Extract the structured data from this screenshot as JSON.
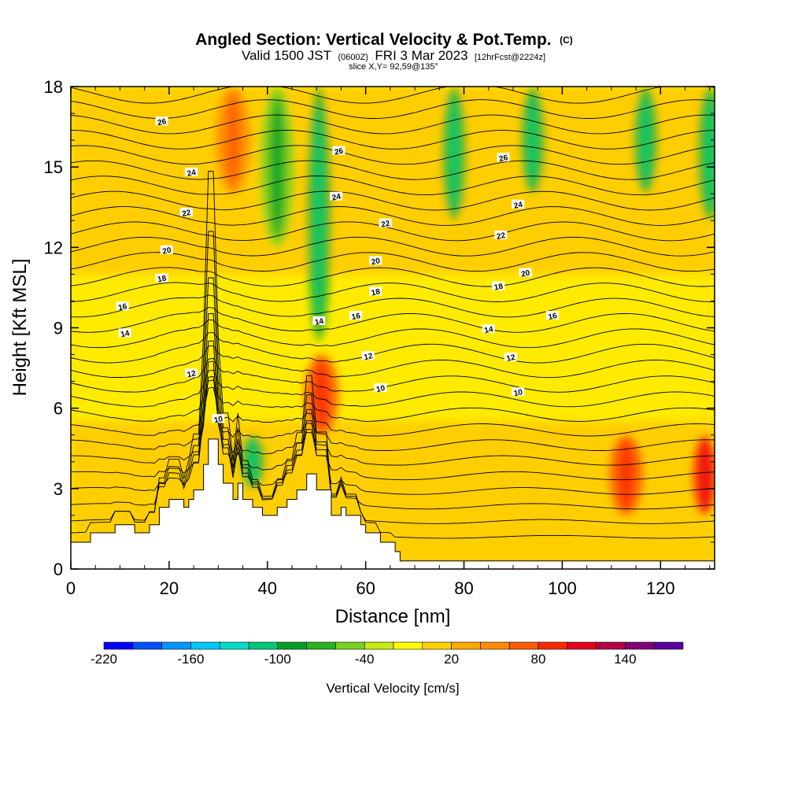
{
  "header": {
    "title_main": "Angled Section: Vertical Velocity & Pot.Temp.",
    "title_c": "(C)",
    "valid_prefix": "Valid 1500 JST",
    "valid_z": "(0600Z)",
    "valid_date": "FRI 3 Mar 2023",
    "valid_fcst": "[12hrFcst@2224z]",
    "slice": "slice X,Y= 92,59@135°"
  },
  "chart_data": {
    "type": "heatmap",
    "title": "Angled Section: Vertical Velocity & Pot.Temp.",
    "xlabel": "Distance [nm]",
    "ylabel": "Height [Kft MSL]",
    "xlim": [
      0,
      131
    ],
    "ylim": [
      0,
      18
    ],
    "x_ticks": [
      0,
      20,
      40,
      60,
      80,
      100,
      120
    ],
    "y_ticks": [
      0,
      3,
      6,
      9,
      12,
      15,
      18
    ],
    "grid": false,
    "colorbar": {
      "title": "Vertical Velocity [cm/s]",
      "min": -220,
      "max": 170,
      "step": 20,
      "tick_labels": [
        -220,
        -160,
        -100,
        -40,
        20,
        80,
        140
      ],
      "colors": [
        "#0000ff",
        "#0050ff",
        "#0096ff",
        "#00c8ff",
        "#00dcc8",
        "#00c878",
        "#00a028",
        "#28b41e",
        "#78d21e",
        "#c8eb14",
        "#ffff00",
        "#ffd200",
        "#ffaa00",
        "#ff8c00",
        "#ff5a00",
        "#ff2800",
        "#e6001e",
        "#b40046",
        "#820078",
        "#5a00a0"
      ]
    },
    "terrain_profile": {
      "x": [
        0,
        4,
        4,
        9,
        9,
        13,
        13,
        16,
        16,
        18,
        18,
        20,
        20,
        23,
        23,
        24,
        24,
        25,
        25,
        27,
        27,
        28,
        28,
        30,
        30,
        31,
        31,
        33,
        33,
        34,
        34,
        35,
        35,
        37,
        37,
        39,
        39,
        42,
        42,
        44,
        44,
        46,
        46,
        48,
        48,
        50,
        50,
        53,
        53,
        55,
        55,
        56,
        56,
        59,
        59,
        60,
        60,
        63,
        63,
        66,
        66,
        67,
        67,
        71,
        71,
        131
      ],
      "height_kft": [
        1.0,
        1.0,
        1.35,
        1.35,
        1.65,
        1.65,
        1.35,
        1.35,
        1.65,
        1.65,
        2.3,
        2.3,
        2.6,
        2.6,
        2.3,
        2.3,
        2.6,
        2.6,
        2.95,
        2.95,
        3.9,
        3.9,
        4.85,
        4.85,
        3.9,
        3.9,
        3.2,
        3.2,
        2.6,
        2.6,
        3.2,
        3.2,
        2.6,
        2.6,
        2.3,
        2.3,
        2.0,
        2.0,
        2.3,
        2.3,
        2.6,
        2.6,
        2.95,
        2.95,
        3.55,
        3.55,
        2.95,
        2.95,
        2.0,
        2.0,
        2.3,
        2.3,
        2.0,
        2.0,
        1.65,
        1.65,
        1.35,
        1.35,
        1.0,
        1.0,
        0.65,
        0.65,
        0.3,
        0.3,
        0.3,
        0.3
      ]
    },
    "vertical_velocity_features": [
      {
        "x": 50.5,
        "y_from": 8.5,
        "y_to": 18,
        "value": -80
      },
      {
        "x": 42,
        "y_from": 12,
        "y_to": 18,
        "value": -60
      },
      {
        "x": 78,
        "y_from": 13,
        "y_to": 18,
        "value": -80
      },
      {
        "x": 94,
        "y_from": 14,
        "y_to": 18,
        "value": -80
      },
      {
        "x": 117,
        "y_from": 14,
        "y_to": 18,
        "value": -80
      },
      {
        "x": 130,
        "y_from": 13,
        "y_to": 18,
        "value": -80
      },
      {
        "x": 37,
        "y_from": 3,
        "y_to": 5,
        "value": -80
      },
      {
        "x": 33,
        "y_from": 14,
        "y_to": 18,
        "value": 40
      },
      {
        "x": 51,
        "y_from": 5,
        "y_to": 8,
        "value": 60
      },
      {
        "x": 113,
        "y_from": 2,
        "y_to": 5,
        "value": 60
      },
      {
        "x": 129,
        "y_from": 2,
        "y_to": 5,
        "value": 80
      }
    ],
    "pot_temp_contour_labels": [
      {
        "x": 18.5,
        "y": 16.7,
        "text": "26"
      },
      {
        "x": 24.5,
        "y": 14.8,
        "text": "24"
      },
      {
        "x": 23.5,
        "y": 13.3,
        "text": "22"
      },
      {
        "x": 19.5,
        "y": 11.9,
        "text": "20"
      },
      {
        "x": 18.5,
        "y": 10.85,
        "text": "18"
      },
      {
        "x": 10.5,
        "y": 9.8,
        "text": "16"
      },
      {
        "x": 11,
        "y": 8.8,
        "text": "14"
      },
      {
        "x": 24.5,
        "y": 7.3,
        "text": "12"
      },
      {
        "x": 30,
        "y": 5.6,
        "text": "10"
      },
      {
        "x": 54.5,
        "y": 15.6,
        "text": "26"
      },
      {
        "x": 54,
        "y": 13.9,
        "text": "24"
      },
      {
        "x": 64,
        "y": 12.9,
        "text": "22"
      },
      {
        "x": 62,
        "y": 11.5,
        "text": "20"
      },
      {
        "x": 62,
        "y": 10.35,
        "text": "18"
      },
      {
        "x": 58,
        "y": 9.45,
        "text": "16"
      },
      {
        "x": 50.5,
        "y": 9.25,
        "text": "14"
      },
      {
        "x": 60.5,
        "y": 7.95,
        "text": "12"
      },
      {
        "x": 63,
        "y": 6.75,
        "text": "10"
      },
      {
        "x": 88,
        "y": 15.35,
        "text": "26"
      },
      {
        "x": 91,
        "y": 13.6,
        "text": "24"
      },
      {
        "x": 87.5,
        "y": 12.45,
        "text": "22"
      },
      {
        "x": 92.5,
        "y": 11.05,
        "text": "20"
      },
      {
        "x": 87,
        "y": 10.55,
        "text": "18"
      },
      {
        "x": 98,
        "y": 9.45,
        "text": "16"
      },
      {
        "x": 85,
        "y": 8.95,
        "text": "14"
      },
      {
        "x": 89.5,
        "y": 7.9,
        "text": "12"
      },
      {
        "x": 91,
        "y": 6.6,
        "text": "10"
      }
    ]
  }
}
